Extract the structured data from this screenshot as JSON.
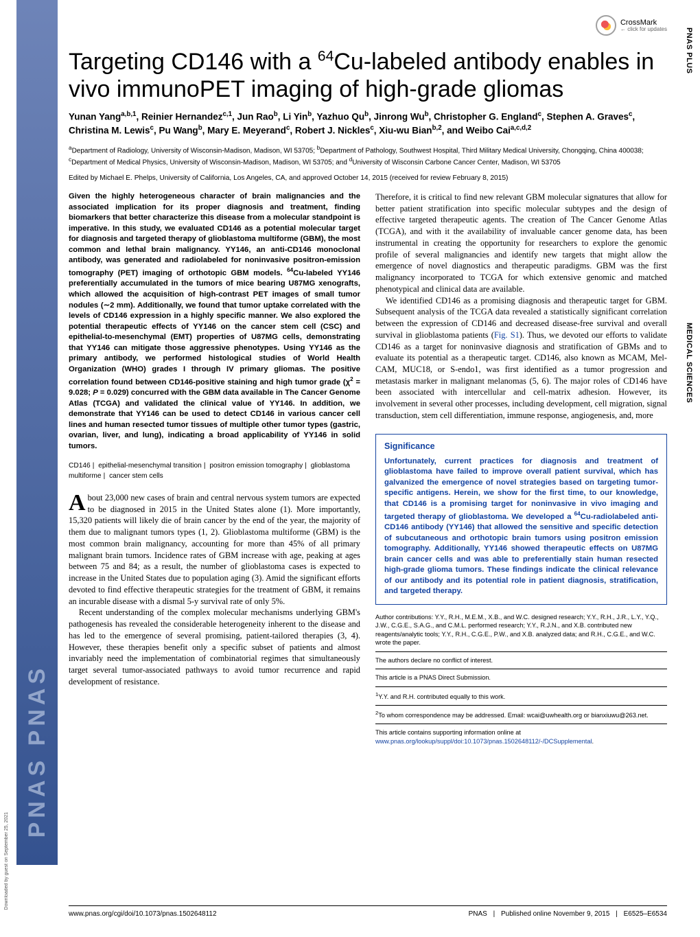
{
  "meta": {
    "right_label_plus": "PNAS PLUS",
    "right_label_section": "MEDICAL SCIENCES",
    "stripe_text": "PNAS   PNAS",
    "colors": {
      "brand_blue": "#1342a0",
      "stripe_top": "#6e84b8",
      "stripe_bottom": "#34528f",
      "body_text": "#000000",
      "background": "#ffffff"
    }
  },
  "crossmark": {
    "label": "CrossMark",
    "sub": "← click for updates"
  },
  "title_html": "Targeting CD146 with a <sup>64</sup>Cu-labeled antibody enables in vivo immunoPET imaging of high-grade gliomas",
  "authors_html": "Yunan Yang<sup>a,b,1</sup>, Reinier Hernandez<sup>c,1</sup>, Jun Rao<sup>b</sup>, Li Yin<sup>b</sup>, Yazhuo Qu<sup>b</sup>, Jinrong Wu<sup>b</sup>, Christopher G. England<sup>c</sup>, Stephen A. Graves<sup>c</sup>, Christina M. Lewis<sup>c</sup>, Pu Wang<sup>b</sup>, Mary E. Meyerand<sup>c</sup>, Robert J. Nickles<sup>c</sup>, Xiu-wu Bian<sup>b,2</sup>, and Weibo Cai<sup>a,c,d,2</sup>",
  "affiliations_html": "<sup>a</sup>Department of Radiology, University of Wisconsin-Madison, Madison, WI 53705; <sup>b</sup>Department of Pathology, Southwest Hospital, Third Military Medical University, Chongqing, China 400038; <sup>c</sup>Department of Medical Physics, University of Wisconsin-Madison, Madison, WI 53705; and <sup>d</sup>University of Wisconsin Carbone Cancer Center, Madison, WI 53705",
  "edited": "Edited by Michael E. Phelps, University of California, Los Angeles, CA, and approved October 14, 2015 (received for review February 8, 2015)",
  "abstract_html": "Given the highly heterogeneous character of brain malignancies and the associated implication for its proper diagnosis and treatment, finding biomarkers that better characterize this disease from a molecular standpoint is imperative. In this study, we evaluated CD146 as a potential molecular target for diagnosis and targeted therapy of glioblastoma multiforme (GBM), the most common and lethal brain malignancy. YY146, an anti-CD146 monoclonal antibody, was generated and radiolabeled for noninvasive positron-emission tomography (PET) imaging of orthotopic GBM models. <sup>64</sup>Cu-labeled YY146 preferentially accumulated in the tumors of mice bearing U87MG xenografts, which allowed the acquisition of high-contrast PET images of small tumor nodules (∼2 mm). Additionally, we found that tumor uptake correlated with the levels of CD146 expression in a highly specific manner. We also explored the potential therapeutic effects of YY146 on the cancer stem cell (CSC) and epithelial-to-mesenchymal (EMT) properties of U87MG cells, demonstrating that YY146 can mitigate those aggressive phenotypes. Using YY146 as the primary antibody, we performed histological studies of World Health Organization (WHO) grades I through IV primary gliomas. The positive correlation found between CD146-positive staining and high tumor grade (χ<sup>2</sup> = 9.028; <i>P</i> = 0.029) concurred with the GBM data available in The Cancer Genome Atlas (TCGA) and validated the clinical value of YY146. In addition, we demonstrate that YY146 can be used to detect CD146 in various cancer cell lines and human resected tumor tissues of multiple other tumor types (gastric, ovarian, liver, and lung), indicating a broad applicability of YY146 in solid tumors.",
  "keywords": [
    "CD146",
    "epithelial-mesenchymal transition",
    "positron emission tomography",
    "glioblastoma multiforme",
    "cancer stem cells"
  ],
  "body_left": [
    "About 23,000 new cases of brain and central nervous system tumors are expected to be diagnosed in 2015 in the United States alone (1). More importantly, 15,320 patients will likely die of brain cancer by the end of the year, the majority of them due to malignant tumors types (1, 2). Glioblastoma multiforme (GBM) is the most common brain malignancy, accounting for more than 45% of all primary malignant brain tumors. Incidence rates of GBM increase with age, peaking at ages between 75 and 84; as a result, the number of glioblastoma cases is expected to increase in the United States due to population aging (3). Amid the significant efforts devoted to find effective therapeutic strategies for the treatment of GBM, it remains an incurable disease with a dismal 5-y survival rate of only 5%.",
    "Recent understanding of the complex molecular mechanisms underlying GBM's pathogenesis has revealed the considerable heterogeneity inherent to the disease and has led to the emergence of several promising, patient-tailored therapies (3, 4). However, these therapies benefit only a specific subset of patients and almost invariably need the implementation of combinatorial regimes that simultaneously target several tumor-associated pathways to avoid tumor recurrence and rapid development of resistance."
  ],
  "body_right": [
    "Therefore, it is critical to find new relevant GBM molecular signatures that allow for better patient stratification into specific molecular subtypes and the design of effective targeted therapeutic agents. The creation of The Cancer Genome Atlas (TCGA), and with it the availability of invaluable cancer genome data, has been instrumental in creating the opportunity for researchers to explore the genomic profile of several malignancies and identify new targets that might allow the emergence of novel diagnostics and therapeutic paradigms. GBM was the first malignancy incorporated to TCGA for which extensive genomic and matched phenotypical and clinical data are available.",
    "We identified CD146 as a promising diagnosis and therapeutic target for GBM. Subsequent analysis of the TCGA data revealed a statistically significant correlation between the expression of CD146 and decreased disease-free survival and overall survival in glioblastoma patients (<span class=\"link\">Fig. S1</span>). Thus, we devoted our efforts to validate CD146 as a target for noninvasive diagnosis and stratification of GBMs and to evaluate its potential as a therapeutic target. CD146, also known as MCAM, Mel-CAM, MUC18, or S-endo1, was first identified as a tumor progression and metastasis marker in malignant melanomas (5, 6). The major roles of CD146 have been associated with intercellular and cell-matrix adhesion. However, its involvement in several other processes, including development, cell migration, signal transduction, stem cell differentiation, immune response, angiogenesis, and, more"
  ],
  "significance": {
    "heading": "Significance",
    "body_html": "Unfortunately, current practices for diagnosis and treatment of glioblastoma have failed to improve overall patient survival, which has galvanized the emergence of novel strategies based on targeting tumor-specific antigens. Herein, we show for the first time, to our knowledge, that CD146 is a promising target for noninvasive in vivo imaging and targeted therapy of glioblastoma. We developed a <sup>64</sup>Cu-radiolabeled anti-CD146 antibody (YY146) that allowed the sensitive and specific detection of subcutaneous and orthotopic brain tumors using positron emission tomography. Additionally, YY146 showed therapeutic effects on U87MG brain cancer cells and was able to preferentially stain human resected high-grade glioma tumors. These findings indicate the clinical relevance of our antibody and its potential role in patient diagnosis, stratification, and targeted therapy."
  },
  "footnotes": {
    "author_contrib": "Author contributions: Y.Y., R.H., M.E.M., X.B., and W.C. designed research; Y.Y., R.H., J.R., L.Y., Y.Q., J.W., C.G.E., S.A.G., and C.M.L. performed research; Y.Y., R.J.N., and X.B. contributed new reagents/analytic tools; Y.Y., R.H., C.G.E., P.W., and X.B. analyzed data; and R.H., C.G.E., and W.C. wrote the paper.",
    "conflict": "The authors declare no conflict of interest.",
    "direct": "This article is a PNAS Direct Submission.",
    "equal": "Y.Y. and R.H. contributed equally to this work.",
    "corr": "To whom correspondence may be addressed. Email: wcai@uwhealth.org or bianxiuwu@263.net.",
    "supp_pre": "This article contains supporting information online at ",
    "supp_link": "www.pnas.org/lookup/suppl/doi:10.1073/pnas.1502648112/-/DCSupplemental",
    "supp_post": "."
  },
  "bottom": {
    "doi": "www.pnas.org/cgi/doi/10.1073/pnas.1502648112",
    "journal": "PNAS",
    "pub": "Published online November 9, 2015",
    "pages": "E6525–E6534"
  },
  "watermark": "Downloaded by guest on September 25, 2021"
}
